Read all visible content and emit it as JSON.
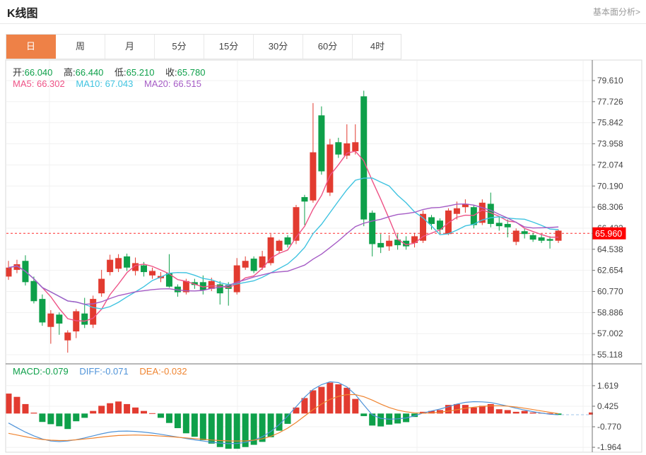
{
  "header": {
    "title": "K线图",
    "link": "基本面分析>"
  },
  "tabs": {
    "items": [
      "日",
      "周",
      "月",
      "5分",
      "15分",
      "30分",
      "60分",
      "4时"
    ],
    "active_index": 0
  },
  "ohlc_legend": {
    "open_label": "开:",
    "open": "66.040",
    "high_label": "高:",
    "high": "66.440",
    "low_label": "低:",
    "low": "65.210",
    "close_label": "收:",
    "close": "65.780"
  },
  "ma_legend": {
    "ma5_label": "MA5:",
    "ma5": "66.302",
    "ma10_label": "MA10:",
    "ma10": "67.043",
    "ma20_label": "MA20:",
    "ma20": "66.515"
  },
  "macd_legend": {
    "macd_label": "MACD:",
    "macd": "-0.079",
    "diff_label": "DIFF:",
    "diff": "-0.071",
    "dea_label": "DEA:",
    "dea": "-0.032"
  },
  "price_marker": {
    "label": "65.960",
    "value": 65.96
  },
  "colors": {
    "up": "#e23b30",
    "down": "#0ea04a",
    "ma5": "#ee5286",
    "ma10": "#3fc3e0",
    "ma20": "#a55bc5",
    "diff": "#4f93d8",
    "dea": "#ef8430",
    "active_tab": "#ee8147",
    "marker_bg": "#fe0000",
    "marker_line": "#ff2d2d",
    "axis_text": "#444444",
    "grid": "#f1f1f1",
    "frame": "#d9d9d9",
    "axis_line": "#707070"
  },
  "chart_data": {
    "type": "candlestick+macd",
    "title": "K线图",
    "legend_position": "top-left-overlay",
    "grid": "on",
    "price_axis_tick_labels": [
      "79.610",
      "77.726",
      "75.842",
      "73.958",
      "72.074",
      "70.190",
      "68.306",
      "66.422",
      "64.538",
      "62.654",
      "60.770",
      "58.886",
      "57.002",
      "55.118"
    ],
    "price_axis_range": [
      55.118,
      79.61
    ],
    "current_price": 65.96,
    "ma_periods": [
      5,
      10,
      20
    ],
    "candles_format": [
      "open",
      "high",
      "low",
      "close"
    ],
    "candles": [
      [
        62.1,
        63.5,
        61.8,
        62.9
      ],
      [
        62.7,
        63.6,
        62.4,
        63.2
      ],
      [
        63.5,
        64.0,
        61.3,
        61.6
      ],
      [
        61.7,
        62.1,
        59.7,
        59.9
      ],
      [
        60.1,
        60.5,
        57.7,
        58.0
      ],
      [
        57.6,
        59.1,
        56.1,
        58.8
      ],
      [
        58.7,
        58.9,
        56.9,
        57.9
      ],
      [
        56.4,
        57.3,
        55.3,
        57.1
      ],
      [
        57.2,
        59.2,
        56.6,
        59.0
      ],
      [
        58.8,
        60.2,
        57.5,
        57.8
      ],
      [
        57.8,
        60.4,
        57.5,
        60.1
      ],
      [
        60.6,
        62.7,
        60.3,
        61.9
      ],
      [
        62.5,
        64.05,
        62.2,
        63.6
      ],
      [
        62.8,
        64.1,
        62.5,
        63.75
      ],
      [
        63.9,
        64.15,
        62.6,
        62.9
      ],
      [
        62.6,
        63.8,
        62.2,
        63.3
      ],
      [
        63.1,
        63.4,
        62.1,
        62.5
      ],
      [
        62.2,
        62.9,
        61.9,
        62.6
      ],
      [
        61.95,
        62.5,
        61.6,
        62.15
      ],
      [
        62.4,
        64.1,
        61.1,
        61.2
      ],
      [
        61.2,
        61.4,
        60.3,
        60.7
      ],
      [
        60.7,
        61.9,
        60.5,
        61.7
      ],
      [
        61.6,
        61.9,
        61.0,
        61.35
      ],
      [
        61.6,
        62.2,
        60.5,
        60.9
      ],
      [
        61.0,
        62.0,
        60.8,
        61.7
      ],
      [
        61.4,
        61.7,
        59.6,
        60.6
      ],
      [
        61.35,
        61.6,
        59.5,
        61.0
      ],
      [
        60.7,
        63.75,
        60.5,
        63.1
      ],
      [
        62.9,
        63.9,
        62.7,
        63.5
      ],
      [
        63.7,
        63.9,
        62.4,
        62.6
      ],
      [
        62.9,
        64.4,
        62.7,
        63.9
      ],
      [
        63.3,
        65.9,
        63.1,
        65.6
      ],
      [
        64.4,
        65.4,
        64.2,
        65.3
      ],
      [
        65.6,
        65.8,
        64.7,
        64.95
      ],
      [
        65.3,
        68.5,
        65.0,
        68.3
      ],
      [
        69.2,
        69.4,
        66.7,
        68.8
      ],
      [
        68.9,
        77.6,
        68.7,
        73.2
      ],
      [
        76.5,
        77.3,
        71.2,
        71.5
      ],
      [
        69.6,
        74.4,
        69.3,
        73.9
      ],
      [
        74.1,
        74.5,
        72.7,
        73.0
      ],
      [
        72.9,
        75.7,
        72.6,
        74.0
      ],
      [
        73.3,
        75.7,
        73.0,
        74.1
      ],
      [
        78.2,
        78.7,
        66.6,
        67.2
      ],
      [
        67.8,
        68.0,
        63.9,
        65.0
      ],
      [
        65.1,
        65.9,
        64.2,
        64.7
      ],
      [
        64.8,
        65.8,
        64.4,
        65.3
      ],
      [
        65.4,
        65.9,
        64.5,
        64.9
      ],
      [
        65.3,
        65.7,
        64.5,
        64.8
      ],
      [
        65.1,
        66.0,
        64.7,
        65.7
      ],
      [
        65.3,
        68.0,
        65.1,
        67.7
      ],
      [
        67.4,
        67.6,
        66.3,
        66.8
      ],
      [
        67.1,
        67.3,
        66.0,
        66.3
      ],
      [
        65.9,
        68.2,
        65.8,
        68.0
      ],
      [
        67.7,
        68.8,
        67.2,
        68.2
      ],
      [
        68.3,
        69.0,
        67.8,
        68.6
      ],
      [
        68.3,
        68.5,
        66.4,
        66.7
      ],
      [
        66.9,
        69.0,
        66.7,
        68.7
      ],
      [
        68.6,
        69.6,
        66.5,
        66.8
      ],
      [
        66.9,
        67.4,
        66.2,
        66.6
      ],
      [
        66.8,
        67.2,
        65.6,
        66.5
      ],
      [
        65.2,
        66.4,
        64.9,
        66.2
      ],
      [
        66.15,
        66.4,
        65.5,
        65.9
      ],
      [
        65.8,
        66.0,
        65.2,
        65.4
      ],
      [
        65.6,
        65.9,
        65.1,
        65.3
      ],
      [
        65.45,
        65.7,
        64.6,
        65.3
      ],
      [
        65.3,
        66.3,
        65.1,
        66.2
      ]
    ],
    "macd": {
      "axis_tick_labels": [
        "1.619",
        "0.425",
        "-0.770",
        "-1.964"
      ],
      "histogram": [
        1.16,
        0.97,
        0.55,
        0.05,
        -0.49,
        -0.62,
        -0.74,
        -0.9,
        -0.45,
        -0.25,
        0.15,
        0.45,
        0.6,
        0.7,
        0.55,
        0.35,
        0.15,
        0.02,
        -0.25,
        -0.55,
        -0.85,
        -1.15,
        -1.35,
        -1.55,
        -1.75,
        -1.95,
        -2.05,
        -2.05,
        -1.95,
        -1.82,
        -1.65,
        -1.38,
        -1.0,
        -0.6,
        0.35,
        0.9,
        1.35,
        1.55,
        1.8,
        1.7,
        1.5,
        0.85,
        -0.15,
        -0.7,
        -0.75,
        -0.65,
        -0.58,
        -0.5,
        -0.2,
        0.1,
        0.15,
        0.2,
        0.5,
        0.55,
        0.5,
        0.35,
        0.45,
        0.55,
        0.25,
        0.2,
        0.1,
        0.15,
        0.06,
        0.04,
        0.02,
        -0.08
      ],
      "diff": [
        -0.55,
        -0.82,
        -1.08,
        -1.3,
        -1.48,
        -1.6,
        -1.63,
        -1.6,
        -1.52,
        -1.42,
        -1.3,
        -1.18,
        -1.08,
        -1.03,
        -1.02,
        -1.04,
        -1.08,
        -1.14,
        -1.21,
        -1.29,
        -1.37,
        -1.45,
        -1.53,
        -1.6,
        -1.67,
        -1.72,
        -1.75,
        -1.74,
        -1.68,
        -1.55,
        -1.35,
        -1.05,
        -0.65,
        -0.15,
        0.4,
        0.95,
        1.4,
        1.68,
        1.85,
        1.8,
        1.55,
        1.1,
        0.5,
        -0.08,
        -0.28,
        -0.33,
        -0.31,
        -0.26,
        -0.13,
        0.03,
        0.15,
        0.26,
        0.4,
        0.55,
        0.65,
        0.69,
        0.68,
        0.64,
        0.54,
        0.43,
        0.31,
        0.2,
        0.11,
        0.03,
        -0.04,
        -0.07
      ],
      "dea": [
        -1.15,
        -1.25,
        -1.35,
        -1.44,
        -1.51,
        -1.55,
        -1.57,
        -1.56,
        -1.53,
        -1.48,
        -1.43,
        -1.37,
        -1.32,
        -1.28,
        -1.26,
        -1.25,
        -1.26,
        -1.28,
        -1.31,
        -1.34,
        -1.38,
        -1.42,
        -1.46,
        -1.5,
        -1.54,
        -1.57,
        -1.59,
        -1.6,
        -1.59,
        -1.55,
        -1.47,
        -1.33,
        -1.12,
        -0.85,
        -0.52,
        -0.15,
        0.22,
        0.55,
        0.82,
        1.0,
        1.1,
        1.1,
        0.98,
        0.78,
        0.55,
        0.35,
        0.2,
        0.1,
        0.04,
        0.02,
        0.04,
        0.08,
        0.14,
        0.22,
        0.3,
        0.37,
        0.42,
        0.45,
        0.45,
        0.43,
        0.38,
        0.31,
        0.23,
        0.15,
        0.07,
        -0.01
      ]
    }
  }
}
